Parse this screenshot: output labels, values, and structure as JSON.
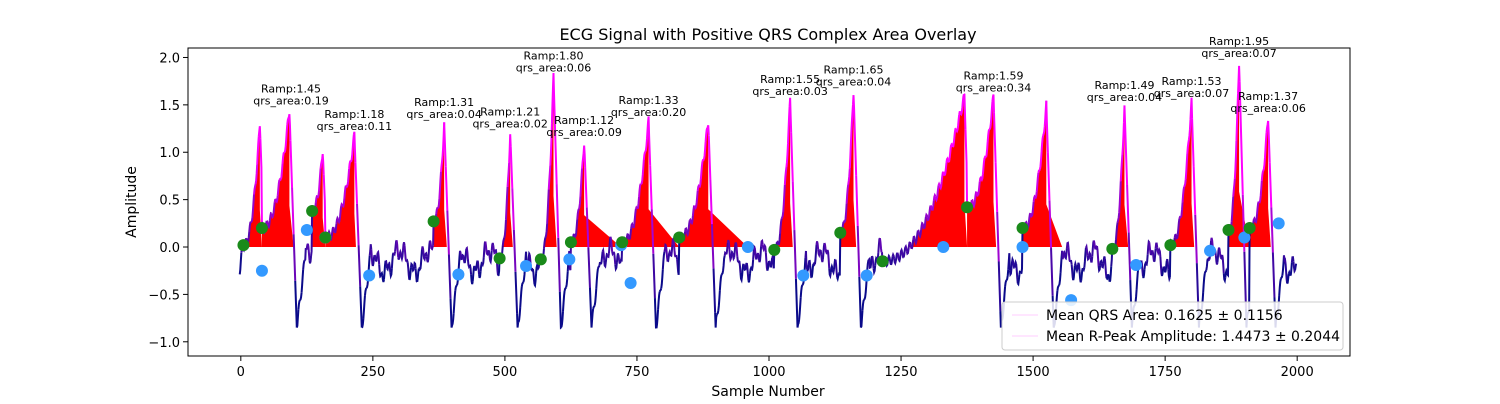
{
  "chart_data": {
    "type": "line",
    "title": "ECG Signal with Positive QRS Complex Area Overlay",
    "xlabel": "Sample Number",
    "ylabel": "Amplitude",
    "xlim": [
      -100,
      2100
    ],
    "ylim": [
      -1.15,
      2.1
    ],
    "xticks": [
      0,
      250,
      500,
      750,
      1000,
      1250,
      1500,
      1750,
      2000
    ],
    "yticks": [
      -1.0,
      -0.5,
      0.0,
      0.5,
      1.0,
      1.5,
      2.0
    ],
    "xtick_labels": [
      "0",
      "250",
      "500",
      "750",
      "1000",
      "1250",
      "1500",
      "1750",
      "2000"
    ],
    "ytick_labels": [
      "−1.0",
      "−0.5",
      "0.0",
      "0.5",
      "1.0",
      "1.5",
      "2.0"
    ],
    "grid": false,
    "legend_position": "lower-right",
    "legend": [
      {
        "label": "Mean QRS Area: 0.1625 ± 0.1156"
      },
      {
        "label": "Mean R-Peak Amplitude: 1.4473 ± 0.2044"
      }
    ],
    "colors": {
      "signal_low": "#0a0a8a",
      "signal_high": "#ff00ff",
      "qrs_fill": "#ff0000",
      "onset_marker": "#1a8a1a",
      "offset_marker": "#3399ff"
    },
    "beats": [
      {
        "onset": [
          5,
          0.02
        ],
        "r": [
          36,
          1.3
        ],
        "offset": [
          40,
          -0.25
        ],
        "end": 40
      },
      {
        "onset": [
          40,
          0.2
        ],
        "r": [
          92,
          1.45
        ],
        "offset": [
          125,
          0.18
        ],
        "end": 100
      },
      {
        "onset": [
          135,
          0.38
        ],
        "r": [
          155,
          1.03
        ],
        "offset": [
          160,
          0.1
        ],
        "end": 160
      },
      {
        "onset": [
          160,
          0.1
        ],
        "r": [
          215,
          1.18
        ],
        "offset": [
          243,
          -0.3
        ],
        "end": 218
      },
      {
        "onset": [
          365,
          0.27
        ],
        "r": [
          385,
          1.31
        ],
        "offset": [
          412,
          -0.29
        ],
        "end": 390
      },
      {
        "onset": [
          490,
          -0.12
        ],
        "r": [
          510,
          1.21
        ],
        "offset": [
          540,
          -0.2
        ],
        "end": 515
      },
      {
        "onset": [
          568,
          -0.13
        ],
        "r": [
          592,
          1.8
        ],
        "offset": [
          622,
          -0.13
        ],
        "end": 598
      },
      {
        "onset": [
          625,
          0.05
        ],
        "r": [
          650,
          1.12
        ],
        "offset": [
          720,
          0.02
        ],
        "end": 720
      },
      {
        "onset": [
          722,
          0.05
        ],
        "r": [
          772,
          1.33
        ],
        "offset": [
          738,
          -0.38
        ],
        "end": 830
      },
      {
        "onset": [
          830,
          0.1
        ],
        "r": [
          885,
          1.33
        ],
        "offset": [
          960,
          0.0
        ],
        "end": 960
      },
      {
        "onset": [
          1010,
          -0.03
        ],
        "r": [
          1040,
          1.55
        ],
        "offset": [
          1065,
          -0.3
        ],
        "end": 1045
      },
      {
        "onset": [
          1135,
          0.15
        ],
        "r": [
          1160,
          1.65
        ],
        "offset": [
          1185,
          -0.3
        ],
        "end": 1165
      },
      {
        "onset": [
          1215,
          -0.15
        ],
        "r": [
          1370,
          1.59
        ],
        "offset": [
          1330,
          0.0
        ],
        "end": 1375
      },
      {
        "onset": [
          1375,
          0.42
        ],
        "r": [
          1425,
          1.59
        ],
        "offset": [
          1480,
          0.0
        ],
        "end": 1430
      },
      {
        "onset": [
          1480,
          0.2
        ],
        "r": [
          1525,
          1.5
        ],
        "offset": [
          1572,
          -0.56
        ],
        "end": 1555
      },
      {
        "onset": [
          1650,
          -0.02
        ],
        "r": [
          1673,
          1.49
        ],
        "offset": [
          1695,
          -0.19
        ],
        "end": 1680
      },
      {
        "onset": [
          1760,
          0.02
        ],
        "r": [
          1800,
          1.53
        ],
        "offset": [
          1835,
          -0.04
        ],
        "end": 1805
      },
      {
        "onset": [
          1870,
          0.18
        ],
        "r": [
          1890,
          1.95
        ],
        "offset": [
          1900,
          0.1
        ],
        "end": 1910
      },
      {
        "onset": [
          1910,
          0.2
        ],
        "r": [
          1945,
          1.37
        ],
        "offset": [
          1965,
          0.25
        ],
        "end": 1950
      }
    ],
    "annotations": [
      {
        "x": 95,
        "y": 1.45,
        "ramp": "Ramp:1.45",
        "area": "qrs_area:0.19"
      },
      {
        "x": 215,
        "y": 1.18,
        "ramp": "Ramp:1.18",
        "area": "qrs_area:0.11"
      },
      {
        "x": 385,
        "y": 1.31,
        "ramp": "Ramp:1.31",
        "area": "qrs_area:0.04"
      },
      {
        "x": 510,
        "y": 1.21,
        "ramp": "Ramp:1.21",
        "area": "qrs_area:0.02"
      },
      {
        "x": 592,
        "y": 1.8,
        "ramp": "Ramp:1.80",
        "area": "qrs_area:0.06"
      },
      {
        "x": 650,
        "y": 1.12,
        "ramp": "Ramp:1.12",
        "area": "qrs_area:0.09"
      },
      {
        "x": 772,
        "y": 1.33,
        "ramp": "Ramp:1.33",
        "area": "qrs_area:0.20"
      },
      {
        "x": 1040,
        "y": 1.55,
        "ramp": "Ramp:1.55",
        "area": "qrs_area:0.03"
      },
      {
        "x": 1160,
        "y": 1.65,
        "ramp": "Ramp:1.65",
        "area": "qrs_area:0.04"
      },
      {
        "x": 1425,
        "y": 1.59,
        "ramp": "Ramp:1.59",
        "area": "qrs_area:0.34"
      },
      {
        "x": 1673,
        "y": 1.49,
        "ramp": "Ramp:1.49",
        "area": "qrs_area:0.04"
      },
      {
        "x": 1800,
        "y": 1.53,
        "ramp": "Ramp:1.53",
        "area": "qrs_area:0.07"
      },
      {
        "x": 1890,
        "y": 1.95,
        "ramp": "Ramp:1.95",
        "area": "qrs_area:0.07"
      },
      {
        "x": 1945,
        "y": 1.37,
        "ramp": "Ramp:1.37",
        "area": "qrs_area:0.06"
      }
    ]
  }
}
